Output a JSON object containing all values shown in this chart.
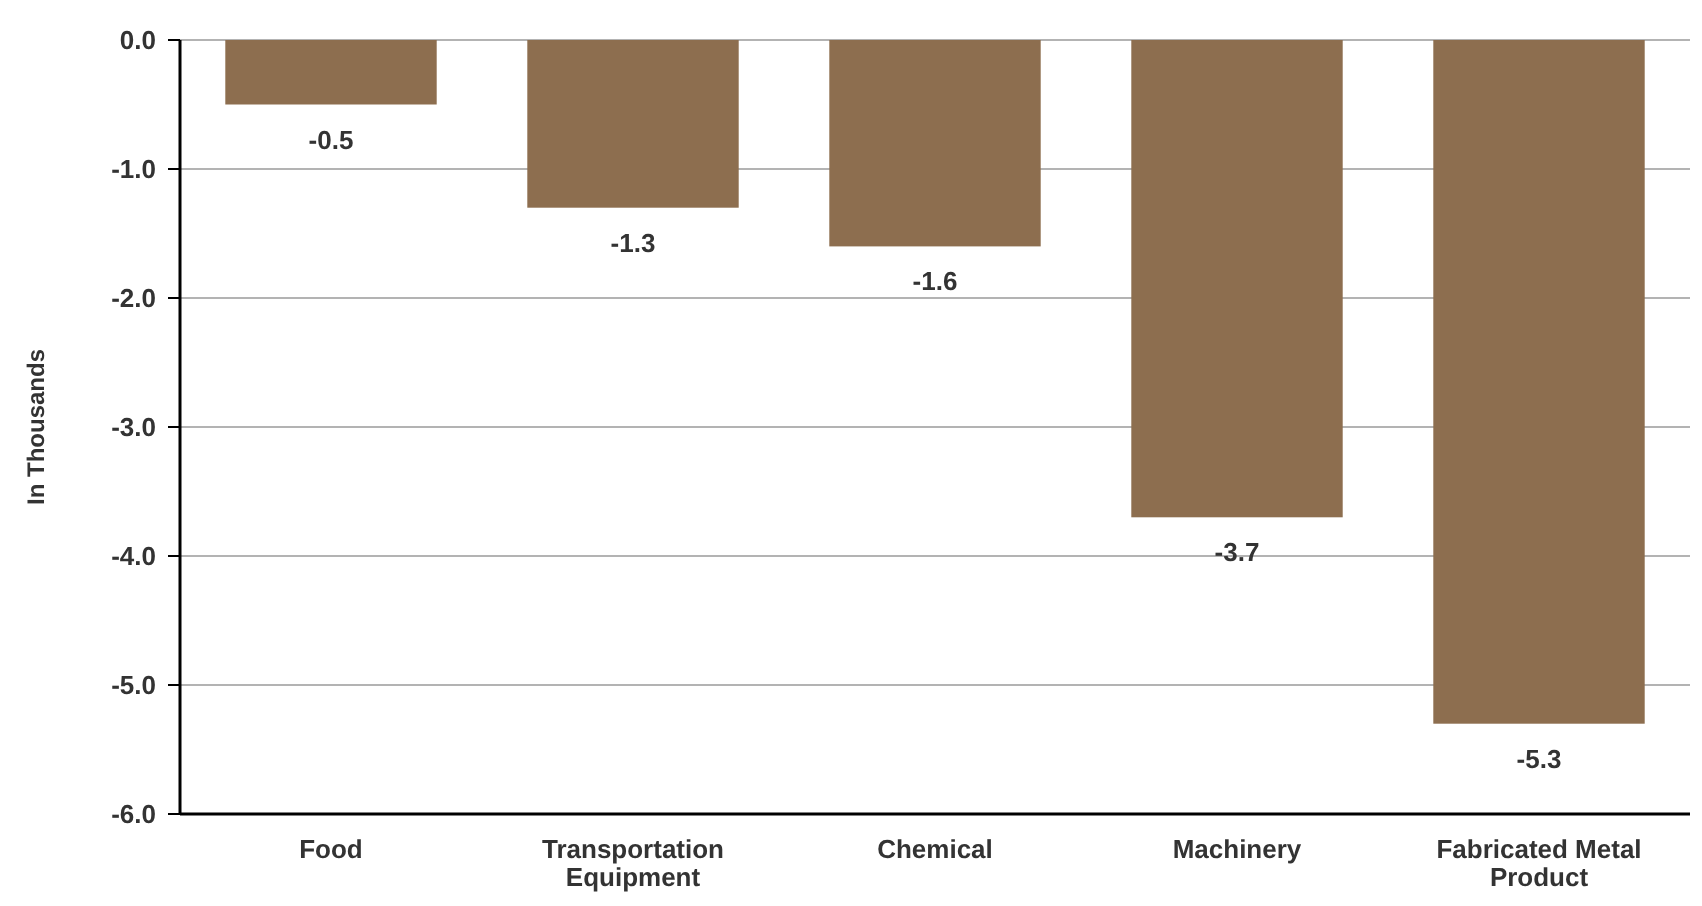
{
  "chart_data": {
    "type": "bar",
    "ylabel": "In Thousands",
    "categories": [
      "Food",
      "Transportation Equipment",
      "Chemical",
      "Machinery",
      "Fabricated Metal Product"
    ],
    "values": [
      -0.5,
      -1.3,
      -1.6,
      -3.7,
      -5.3
    ],
    "color": "#8d6e4f",
    "ylim": [
      -6,
      0
    ],
    "yticks": [
      {
        "value": -6,
        "label": "-6.0"
      },
      {
        "value": -5,
        "label": "-5.0"
      },
      {
        "value": -4,
        "label": "-4.0"
      },
      {
        "value": -3,
        "label": "-3.0"
      },
      {
        "value": -2,
        "label": "-2.0"
      },
      {
        "value": -1,
        "label": "-1.0"
      },
      {
        "value": 0,
        "label": "0.0"
      }
    ],
    "grid": "y",
    "data_labels": true
  }
}
